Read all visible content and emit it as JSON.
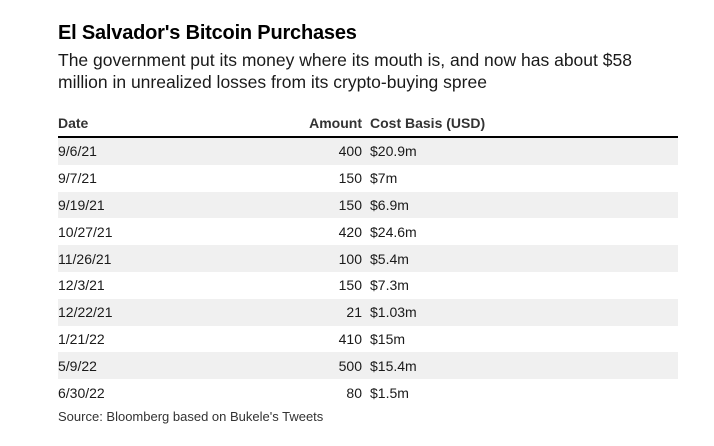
{
  "title": "El Salvador's Bitcoin Purchases",
  "subtitle": "The government put its money where its mouth is, and now has about $58 million in unrealized losses from its crypto-buying spree",
  "table": {
    "headers": {
      "date": "Date",
      "amount": "Amount",
      "cost_basis": "Cost Basis (USD)"
    },
    "rows": [
      {
        "date": "9/6/21",
        "amount": "400",
        "cost": "$20.9m"
      },
      {
        "date": "9/7/21",
        "amount": "150",
        "cost": "$7m"
      },
      {
        "date": "9/19/21",
        "amount": "150",
        "cost": "$6.9m"
      },
      {
        "date": "10/27/21",
        "amount": "420",
        "cost": "$24.6m"
      },
      {
        "date": "11/26/21",
        "amount": "100",
        "cost": "$5.4m"
      },
      {
        "date": "12/3/21",
        "amount": "150",
        "cost": "$7.3m"
      },
      {
        "date": "12/22/21",
        "amount": "21",
        "cost": "$1.03m"
      },
      {
        "date": "1/21/22",
        "amount": "410",
        "cost": "$15m"
      },
      {
        "date": "5/9/22",
        "amount": "500",
        "cost": "$15.4m"
      },
      {
        "date": "6/30/22",
        "amount": "80",
        "cost": "$1.5m"
      }
    ]
  },
  "source": "Source: Bloomberg based on Bukele's Tweets",
  "colors": {
    "shade": "#f0f0f0",
    "rule": "#000000"
  }
}
